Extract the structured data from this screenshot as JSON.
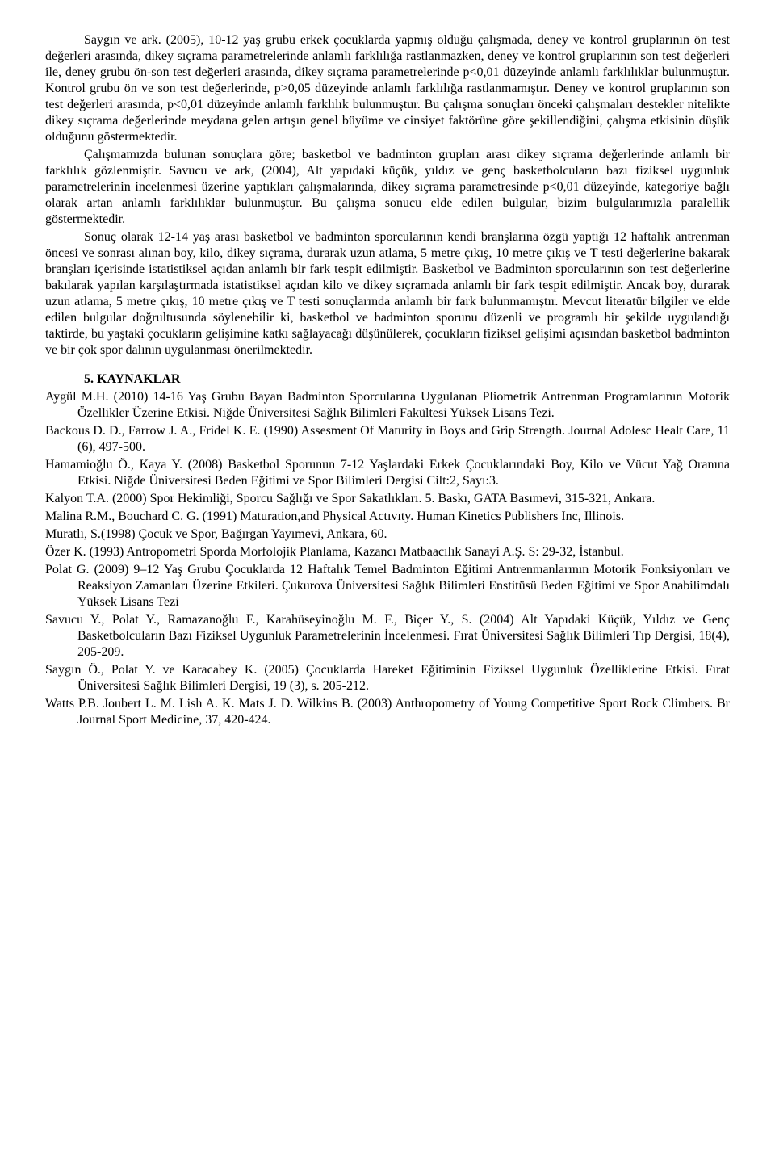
{
  "paragraphs": {
    "p1": "Saygın ve ark. (2005), 10-12 yaş grubu erkek çocuklarda yapmış olduğu çalışmada, deney ve kontrol gruplarının ön test değerleri arasında, dikey sıçrama parametrelerinde anlamlı farklılığa rastlanmazken, deney ve kontrol gruplarının son test değerleri ile, deney grubu ön-son test değerleri arasında, dikey sıçrama parametrelerinde p<0,01 düzeyinde anlamlı farklılıklar bulunmuştur. Kontrol grubu ön ve son test değerlerinde, p>0,05 düzeyinde anlamlı farklılığa rastlanmamıştır. Deney ve kontrol gruplarının son test değerleri arasında, p<0,01 düzeyinde anlamlı farklılık bulunmuştur. Bu çalışma sonuçları önceki çalışmaları destekler nitelikte dikey sıçrama değerlerinde meydana gelen artışın genel büyüme ve cinsiyet faktörüne göre şekillendiğini, çalışma etkisinin düşük olduğunu göstermektedir.",
    "p2": "Çalışmamızda bulunan sonuçlara göre; basketbol ve badminton grupları arası dikey sıçrama değerlerinde anlamlı bir farklılık gözlenmiştir. Savucu ve ark, (2004), Alt yapıdaki küçük, yıldız ve genç basketbolcuların bazı fiziksel uygunluk parametrelerinin incelenmesi üzerine yaptıkları çalışmalarında, dikey sıçrama parametresinde p<0,01 düzeyinde, kategoriye bağlı olarak artan anlamlı farklılıklar bulunmuştur. Bu çalışma sonucu elde edilen bulgular, bizim bulgularımızla paralellik göstermektedir.",
    "p3": "Sonuç olarak 12-14 yaş arası basketbol ve badminton sporcularının kendi branşlarına özgü yaptığı 12 haftalık antrenman öncesi ve sonrası alınan boy, kilo, dikey sıçrama, durarak uzun atlama, 5 metre çıkış, 10 metre çıkış ve T testi değerlerine bakarak branşları içerisinde istatistiksel açıdan anlamlı bir fark tespit edilmiştir. Basketbol ve Badminton sporcularının son test değerlerine bakılarak yapılan karşılaştırmada istatistiksel açıdan kilo ve dikey sıçramada anlamlı bir fark tespit edilmiştir. Ancak boy, durarak uzun atlama, 5 metre çıkış, 10 metre çıkış ve T testi sonuçlarında anlamlı bir fark bulunmamıştır. Mevcut literatür bilgiler ve elde edilen bulgular doğrultusunda söylenebilir ki, basketbol ve badminton sporunu düzenli ve programlı bir şekilde uygulandığı taktirde, bu yaştaki çocukların gelişimine katkı sağlayacağı düşünülerek, çocukların fiziksel gelişimi açısından basketbol badminton ve bir çok spor dalının uygulanması önerilmektedir."
  },
  "section_heading": "5. KAYNAKLAR",
  "references": [
    "Aygül M.H. (2010) 14-16 Yaş Grubu Bayan Badminton Sporcularına Uygulanan Pliometrik Antrenman Programlarının Motorik Özellikler Üzerine Etkisi. Niğde Üniversitesi Sağlık Bilimleri Fakültesi Yüksek Lisans Tezi.",
    "Backous D. D., Farrow J. A., Fridel K. E. (1990) Assesment Of Maturity in Boys and Grip Strength. Journal Adolesc Healt Care, 11 (6), 497-500.",
    "Hamamioğlu Ö., Kaya Y. (2008) Basketbol Sporunun 7-12 Yaşlardaki Erkek Çocuklarındaki Boy, Kilo ve Vücut Yağ Oranına Etkisi. Niğde Üniversitesi Beden Eğitimi ve Spor Bilimleri Dergisi Cilt:2, Sayı:3.",
    "Kalyon T.A. (2000) Spor Hekimliği, Sporcu Sağlığı ve Spor Sakatlıkları. 5. Baskı, GATA Basımevi, 315-321, Ankara.",
    "Malina R.M., Bouchard C. G. (1991) Maturation,and Physical Actıvıty. Human Kinetics Publishers Inc, Illinois.",
    "Muratlı, S.(1998) Çocuk ve Spor, Bağırgan Yayımevi, Ankara, 60.",
    "Özer K. (1993) Antropometri Sporda Morfolojik Planlama, Kazancı Matbaacılık Sanayi A.Ş.   S: 29-32, İstanbul.",
    "Polat G. (2009) 9–12 Yaş Grubu Çocuklarda 12 Haftalık Temel Badminton Eğitimi Antrenmanlarının Motorik Fonksiyonları ve Reaksiyon Zamanları Üzerine Etkileri. Çukurova Üniversitesi Sağlık Bilimleri Enstitüsü Beden Eğitimi ve Spor Anabilimdalı Yüksek Lisans Tezi",
    "Savucu Y., Polat Y., Ramazanoğlu F., Karahüseyinoğlu M. F., Biçer Y., S. (2004) Alt Yapıdaki Küçük, Yıldız ve Genç Basketbolcuların Bazı Fiziksel Uygunluk Parametrelerinin İncelenmesi. Fırat Üniversitesi Sağlık Bilimleri Tıp Dergisi, 18(4), 205-209.",
    "Saygın Ö., Polat Y. ve Karacabey K. (2005) Çocuklarda Hareket Eğitiminin Fiziksel Uygunluk Özelliklerine Etkisi. Fırat Üniversitesi Sağlık Bilimleri Dergisi, 19 (3), s. 205-212.",
    "Watts P.B. Joubert L. M. Lish A. K. Mats J. D. Wilkins B. (2003) Anthropometry of Young Competitive Sport Rock Climbers. Br Journal Sport Medicine, 37, 420-424."
  ]
}
